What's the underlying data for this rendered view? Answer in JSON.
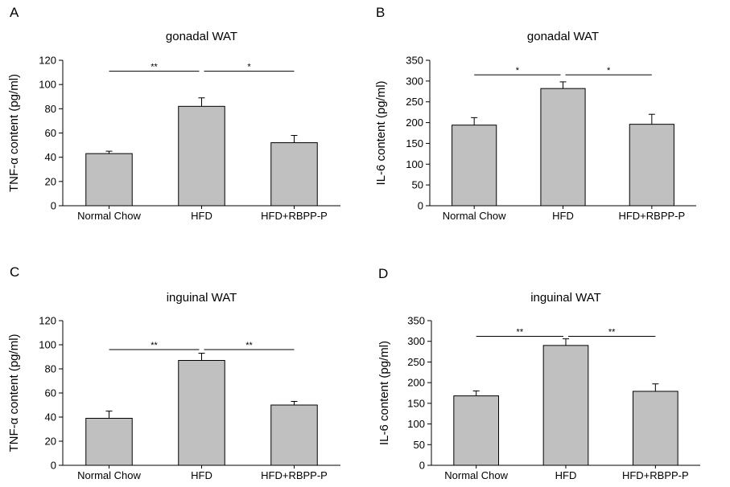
{
  "colors": {
    "bar_fill": "#c0c0c0",
    "bar_stroke": "#000000",
    "axis": "#000000"
  },
  "chart_data": [
    {
      "panel": "A",
      "type": "bar",
      "title": "gonadal WAT",
      "ylabel": "TNF-α content (pg/ml)",
      "xlabel": "",
      "categories": [
        "Normal Chow",
        "HFD",
        "HFD+RBPP-P"
      ],
      "values": [
        43,
        82,
        52
      ],
      "errors": [
        2,
        7,
        6
      ],
      "ylim": [
        0,
        120
      ],
      "yticks": [
        0,
        20,
        40,
        60,
        80,
        100,
        120
      ],
      "significance": [
        {
          "from": 0,
          "to": 1,
          "label": "**",
          "y": 111
        },
        {
          "from": 1,
          "to": 2,
          "label": "*",
          "y": 111
        }
      ]
    },
    {
      "panel": "B",
      "type": "bar",
      "title": "gonadal WAT",
      "ylabel": "IL-6 content (pg/ml)",
      "xlabel": "",
      "categories": [
        "Normal Chow",
        "HFD",
        "HFD+RBPP-P"
      ],
      "values": [
        194,
        282,
        196
      ],
      "errors": [
        18,
        16,
        24
      ],
      "ylim": [
        0,
        350
      ],
      "yticks": [
        0,
        50,
        100,
        150,
        200,
        250,
        300,
        350
      ],
      "significance": [
        {
          "from": 0,
          "to": 1,
          "label": "*",
          "y": 315
        },
        {
          "from": 1,
          "to": 2,
          "label": "*",
          "y": 315
        }
      ]
    },
    {
      "panel": "C",
      "type": "bar",
      "title": "inguinal WAT",
      "ylabel": "TNF-α content (pg/ml)",
      "xlabel": "",
      "categories": [
        "Normal Chow",
        "HFD",
        "HFD+RBPP-P"
      ],
      "values": [
        39,
        87,
        50
      ],
      "errors": [
        6,
        6,
        3
      ],
      "ylim": [
        0,
        120
      ],
      "yticks": [
        0,
        20,
        40,
        60,
        80,
        100,
        120
      ],
      "significance": [
        {
          "from": 0,
          "to": 1,
          "label": "**",
          "y": 96
        },
        {
          "from": 1,
          "to": 2,
          "label": "**",
          "y": 96
        }
      ]
    },
    {
      "panel": "D",
      "type": "bar",
      "title": "inguinal WAT",
      "ylabel": "IL-6 content (pg/ml)",
      "xlabel": "",
      "categories": [
        "Normal Chow",
        "HFD",
        "HFD+RBPP-P"
      ],
      "values": [
        168,
        290,
        179
      ],
      "errors": [
        12,
        16,
        18
      ],
      "ylim": [
        0,
        350
      ],
      "yticks": [
        0,
        50,
        100,
        150,
        200,
        250,
        300,
        350
      ],
      "significance": [
        {
          "from": 0,
          "to": 1,
          "label": "**",
          "y": 312
        },
        {
          "from": 1,
          "to": 2,
          "label": "**",
          "y": 312
        }
      ]
    }
  ]
}
